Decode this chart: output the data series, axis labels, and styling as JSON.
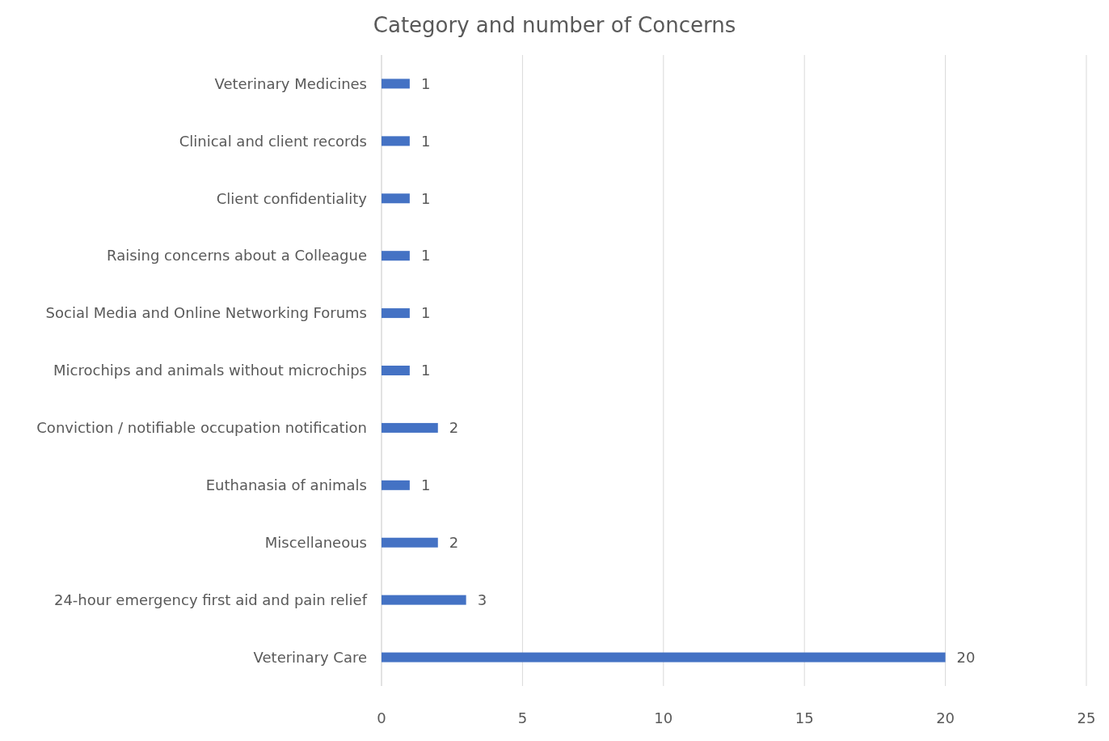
{
  "chart_data": {
    "type": "bar",
    "orientation": "horizontal",
    "title": "Category and number of Concerns",
    "categories": [
      "Veterinary Medicines",
      "Clinical and client records",
      "Client confidentiality",
      "Raising concerns about a Colleague",
      "Social Media and Online Networking Forums",
      "Microchips and animals without microchips",
      "Conviction / notifiable occupation notification",
      "Euthanasia of animals",
      "Miscellaneous",
      "24-hour emergency first aid and pain relief",
      "Veterinary Care"
    ],
    "values": [
      1,
      1,
      1,
      1,
      1,
      1,
      2,
      1,
      2,
      3,
      20
    ],
    "color": "#4472c4",
    "xlim": [
      0,
      25
    ],
    "xticks": [
      0,
      5,
      10,
      15,
      20,
      25
    ],
    "grid": "x",
    "data_labels": true
  }
}
